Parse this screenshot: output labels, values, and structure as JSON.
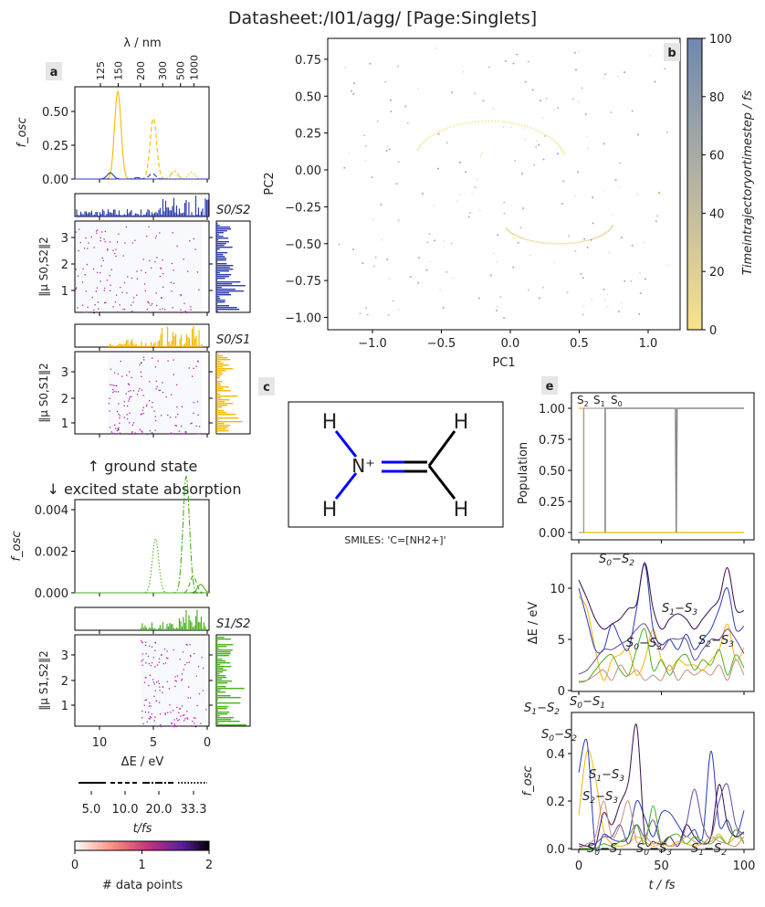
{
  "title": "Datasheet:/I01/agg/ [Page:Singlets]",
  "panels": {
    "a": "a",
    "b": "b",
    "c": "c",
    "e": "e"
  },
  "panel_a": {
    "top_axis_label": "λ / nm",
    "top_ticks": [
      "125",
      "150",
      "200",
      "300",
      "500",
      "1000"
    ],
    "fosc_label": "f_osc",
    "fosc_ticks": [
      "0.00",
      "0.25",
      "0.50"
    ],
    "pair_labels": {
      "s0s2": "S0/S2",
      "s0s1": "S0/S1",
      "s1s2": "S1/S2"
    },
    "dipole_labels": {
      "s0s2": "‖μ S0,S2‖2",
      "s0s1": "‖μ S0,S1‖2",
      "s1s2": "‖μ S1,S2‖2"
    },
    "dipole_ticks": [
      "1",
      "2",
      "3"
    ],
    "divider_up": "↑ ground state",
    "divider_down": "↓ excited state absorption",
    "esa_ticks": [
      "0.000",
      "0.002",
      "0.004"
    ],
    "x_ticks": [
      "10",
      "5",
      "0"
    ],
    "x_label": "ΔE / eV",
    "legend_ticks": [
      "5.0",
      "10.0",
      "20.0",
      "33.3"
    ],
    "legend_label": "t/fs",
    "cbar_ticks": [
      "0",
      "1",
      "2"
    ],
    "cbar_label": "# data points"
  },
  "panel_c": {
    "smiles": "SMILES: 'C=[NH2+]'",
    "atoms": {
      "n": "N⁺",
      "h": "H"
    }
  },
  "colors": {
    "S0-S1": "#f5b800",
    "S0-S2": "#2a3bb0",
    "S0-S3": "#3a0c4c",
    "S1-S3": "#6b4a9b",
    "S1-S2": "#4caf1e",
    "S2-S3": "#c48f80",
    "population_grey": "#888888",
    "pca_low": "#f7e38c",
    "pca_high": "#6e88ae"
  },
  "chart_data": [
    {
      "type": "line",
      "panel": "a-top",
      "xlabel": "ΔE / eV",
      "ylabel": "f_osc",
      "ylim": [
        0,
        0.68
      ],
      "xlim": [
        12.3,
        -0.2
      ],
      "series": [
        {
          "pair": "S0/S1",
          "t": "5.0",
          "peak_eV": 8.3,
          "peak_fosc": 0.65
        },
        {
          "pair": "S0/S1",
          "t": "10.0",
          "peak_eV": 5.0,
          "peak_fosc": 0.45
        },
        {
          "pair": "S0/S1",
          "t": "20.0",
          "peak_eV": 3.05,
          "peak_fosc": 0.06
        },
        {
          "pair": "S0/S1",
          "t": "33.3",
          "peak_eV": 1.45,
          "peak_fosc": 0.05
        },
        {
          "pair": "S0/S2",
          "t": "5.0",
          "peak_eV": 9.0,
          "peak_fosc": 0.045
        },
        {
          "pair": "S0/S2",
          "t": "10.0",
          "peak_eV": 5.1,
          "peak_fosc": 0.04
        },
        {
          "pair": "S0/S2",
          "t": "20.0",
          "peak_eV": 6.5,
          "peak_fosc": 0.01
        }
      ]
    },
    {
      "type": "line",
      "panel": "a-esa",
      "xlabel": "ΔE / eV",
      "ylabel": "f_osc",
      "ylim": [
        0,
        0.0059
      ],
      "series": [
        {
          "pair": "S1/S2",
          "t": "33.3",
          "peak_eV": 4.8,
          "peak_fosc": 0.0026
        },
        {
          "pair": "S1/S2",
          "t": "20.0",
          "peak_eV": 1.95,
          "peak_fosc": 0.0056
        },
        {
          "pair": "S1/S2",
          "t": "10.0",
          "peak_eV": 1.3,
          "peak_fosc": 0.0008
        },
        {
          "pair": "S1/S2",
          "t": "5.0",
          "peak_eV": 0.6,
          "peak_fosc": 0.0004
        }
      ]
    },
    {
      "type": "scatter",
      "panel": "b",
      "xlabel": "PC1",
      "ylabel": "PC2",
      "xlim": [
        -1.35,
        1.25
      ],
      "ylim": [
        -1.08,
        0.88
      ],
      "x_ticks": [
        "−1.0",
        "−0.5",
        "0.0",
        "0.5",
        "1.0"
      ],
      "y_ticks": [
        "0.75",
        "0.50",
        "0.25",
        "0.00",
        "−0.25",
        "−0.50",
        "−0.75",
        "−1.00"
      ],
      "colorbar_label": "Timeintrajectoryortimestep / fs",
      "colorbar_ticks": [
        "0",
        "20",
        "40",
        "60",
        "80",
        "100"
      ],
      "colorbar_range": [
        0,
        100
      ]
    },
    {
      "type": "line",
      "panel": "e-population",
      "ylabel": "Population",
      "ylim": [
        -0.04,
        1.06
      ],
      "y_ticks": [
        "0.00",
        "0.25",
        "0.50",
        "0.75",
        "1.00"
      ],
      "state_labels": [
        "S2",
        "S1",
        "S0"
      ],
      "hops_fs": [
        3,
        16
      ],
      "dip_fs": 59
    },
    {
      "type": "line",
      "panel": "e-energy",
      "ylabel": "ΔE / eV",
      "ylim": [
        0,
        13.4
      ],
      "y_ticks": [
        "0",
        "5",
        "10"
      ],
      "t": [
        0,
        5,
        10,
        15,
        20,
        25,
        30,
        35,
        40,
        45,
        50,
        55,
        60,
        65,
        70,
        75,
        80,
        85,
        90,
        95,
        100
      ],
      "series": [
        {
          "name": "S0−S1",
          "key": "S0-S1",
          "values": [
            9.2,
            8,
            4,
            1.0,
            3,
            3.5,
            4,
            1.5,
            3,
            6,
            3,
            2,
            3,
            2.5,
            2.5,
            2,
            3,
            4,
            6.5,
            3,
            4.2
          ]
        },
        {
          "name": "S0−S2",
          "key": "S0-S2",
          "values": [
            10,
            7,
            4,
            4,
            6.5,
            5,
            4,
            8,
            12.3,
            6,
            4.5,
            5,
            4,
            5.5,
            4,
            5,
            6,
            8,
            10,
            6,
            6.3
          ]
        },
        {
          "name": "S0−S3",
          "key": "S0-S3",
          "values": [
            10.8,
            9,
            7,
            6,
            6.5,
            7,
            8,
            8.5,
            12.5,
            8,
            6,
            7,
            7.5,
            7,
            6,
            7,
            8,
            9,
            12,
            8,
            7.8
          ]
        },
        {
          "name": "S1−S3",
          "key": "S1-S3",
          "values": [
            1.6,
            2,
            3,
            4,
            4,
            4.5,
            5,
            6,
            6.5,
            5,
            4,
            5,
            5,
            5,
            3,
            4,
            5,
            5,
            6,
            5,
            3.6
          ]
        },
        {
          "name": "S1−S2",
          "key": "S1-S2",
          "values": [
            0.8,
            1,
            2,
            3,
            3.5,
            2,
            1.5,
            4,
            6,
            2,
            3,
            1.5,
            3,
            3.5,
            2,
            3,
            2.5,
            4,
            1.5,
            3.5,
            2.2
          ]
        },
        {
          "name": "S2−S3",
          "key": "S2-S3",
          "values": [
            0.9,
            1,
            1.5,
            2,
            1,
            2.5,
            1.5,
            2,
            1,
            1.5,
            1,
            2.5,
            1,
            2,
            1.5,
            2,
            1.5,
            2.5,
            1,
            3,
            1.5
          ]
        }
      ]
    },
    {
      "type": "line",
      "panel": "e-fosc",
      "xlabel": "t / fs",
      "ylabel": "f_osc",
      "ylim": [
        0,
        0.55
      ],
      "y_ticks": [
        "0.0",
        "0.2",
        "0.4"
      ],
      "x_ticks": [
        "0",
        "50",
        "100"
      ],
      "t": [
        0,
        5,
        10,
        15,
        20,
        25,
        30,
        35,
        40,
        45,
        50,
        55,
        60,
        65,
        70,
        75,
        80,
        85,
        90,
        95,
        100
      ],
      "series": [
        {
          "name": "S0−S1",
          "key": "S0-S1",
          "values": [
            0.14,
            0.41,
            0.3,
            0.08,
            0.02,
            0.01,
            0.02,
            0.05,
            0.03,
            0.01,
            0.02,
            0.01,
            0.03,
            0.02,
            0.01,
            0.02,
            0.03,
            0.06,
            0.02,
            0.05,
            0.03
          ]
        },
        {
          "name": "S0−S2",
          "key": "S0-S2",
          "values": [
            0.32,
            0.45,
            0.01,
            0.06,
            0.04,
            0.03,
            0.05,
            0.2,
            0.13,
            0.05,
            0.15,
            0.15,
            0.1,
            0.05,
            0.08,
            0.05,
            0.41,
            0.1,
            0.12,
            0.05,
            0.16
          ]
        },
        {
          "name": "S0−S3",
          "key": "S0-S3",
          "values": [
            0.02,
            0.01,
            0.01,
            0.15,
            0.1,
            0.19,
            0.28,
            0.52,
            0.05,
            0.03,
            0.02,
            0.05,
            0.01,
            0.1,
            0.05,
            0.02,
            0.05,
            0.27,
            0.1,
            0.05,
            0.07
          ]
        },
        {
          "name": "S1−S3",
          "key": "S1-S3",
          "values": [
            0.01,
            0.01,
            0.02,
            0.05,
            0.05,
            0.1,
            0.02,
            0.1,
            0.05,
            0.12,
            0.02,
            0.05,
            0.01,
            0.1,
            0.25,
            0.1,
            0.05,
            0.2,
            0.27,
            0.1,
            0.06
          ]
        },
        {
          "name": "S1−S2",
          "key": "S1-S2",
          "values": [
            0,
            0,
            0,
            0.02,
            0.01,
            0.03,
            0.05,
            0.1,
            0.02,
            0.18,
            0.02,
            0.05,
            0.06,
            0.02,
            0.05,
            0.03,
            0.02,
            0.05,
            0.02,
            0.08,
            0.02
          ]
        },
        {
          "name": "S2−S3",
          "key": "S2-S3",
          "values": [
            0,
            0.02,
            0.05,
            0.2,
            0.05,
            0.1,
            0.2,
            0.03,
            0.05,
            0.02,
            0.03,
            0.01,
            0.02,
            0.05,
            0.03,
            0.02,
            0.05,
            0.03,
            0.02,
            0.01,
            0.05
          ]
        }
      ]
    }
  ]
}
